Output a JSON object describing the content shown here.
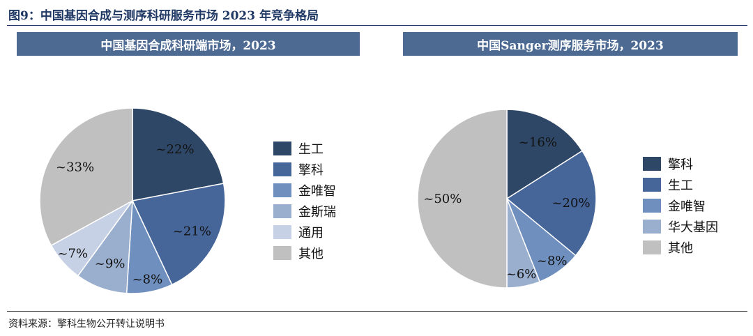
{
  "figure": {
    "title": "图9：中国基因合成与测序科研服务市场 2023 年竞争格局",
    "source": "资料来源：擎科生物公开转让说明书"
  },
  "chart_data": [
    {
      "type": "pie",
      "title": "中国基因合成科研端市场，2023",
      "categories": [
        "生工",
        "擎科",
        "金唯智",
        "金斯瑞",
        "通用",
        "其他"
      ],
      "values": [
        22,
        21,
        8,
        9,
        7,
        33
      ],
      "labels": [
        "~22%",
        "~21%",
        "~8%",
        "~9%",
        "~7%",
        "~33%"
      ],
      "colors": [
        "#2f4766",
        "#46669a",
        "#6f8fbe",
        "#9aaecd",
        "#c7d1e5",
        "#c0c0c0"
      ],
      "legend_position": "right"
    },
    {
      "type": "pie",
      "title": "中国Sanger测序服务市场，2023",
      "categories": [
        "擎科",
        "生工",
        "金唯智",
        "华大基因",
        "其他"
      ],
      "values": [
        16,
        20,
        8,
        6,
        50
      ],
      "labels": [
        "~16%",
        "~20%",
        "~8%",
        "~6%",
        "~50%"
      ],
      "colors": [
        "#2f4766",
        "#46669a",
        "#6f8fbe",
        "#9aaecd",
        "#c0c0c0"
      ],
      "legend_position": "right"
    }
  ]
}
